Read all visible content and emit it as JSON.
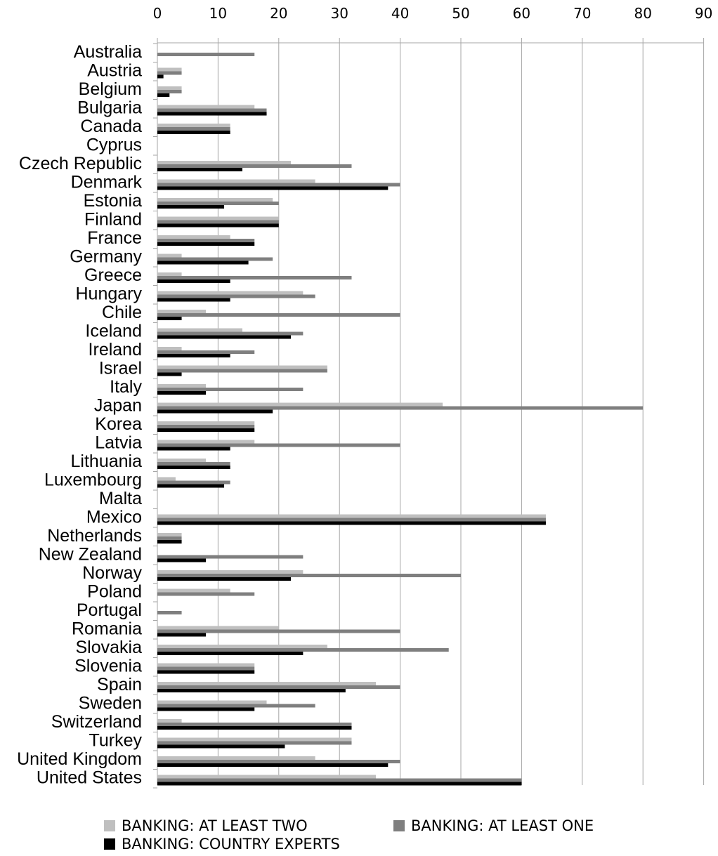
{
  "chart_data": {
    "type": "bar",
    "orientation": "horizontal",
    "categories": [
      "Australia",
      "Austria",
      "Belgium",
      "Bulgaria",
      "Canada",
      "Cyprus",
      "Czech Republic",
      "Denmark",
      "Estonia",
      "Finland",
      "France",
      "Germany",
      "Greece",
      "Hungary",
      "Chile",
      "Iceland",
      "Ireland",
      "Israel",
      "Italy",
      "Japan",
      "Korea",
      "Latvia",
      "Lithuania",
      "Luxembourg",
      "Malta",
      "Mexico",
      "Netherlands",
      "New Zealand",
      "Norway",
      "Poland",
      "Portugal",
      "Romania",
      "Slovakia",
      "Slovenia",
      "Spain",
      "Sweden",
      "Switzerland",
      "Turkey",
      "United Kingdom",
      "United States"
    ],
    "series": [
      {
        "name": "BANKING: AT LEAST TWO",
        "color": "#bfbfbf",
        "values": [
          0,
          4,
          4,
          16,
          12,
          0,
          22,
          26,
          19,
          20,
          12,
          4,
          4,
          24,
          8,
          14,
          4,
          28,
          8,
          47,
          16,
          16,
          8,
          3,
          0,
          64,
          4,
          0,
          24,
          12,
          0,
          20,
          28,
          16,
          36,
          18,
          4,
          32,
          26,
          36
        ]
      },
      {
        "name": "BANKING: AT LEAST ONE",
        "color": "#7f7f7f",
        "values": [
          16,
          4,
          4,
          18,
          12,
          0,
          32,
          40,
          20,
          20,
          16,
          19,
          32,
          26,
          40,
          24,
          16,
          28,
          24,
          80,
          16,
          40,
          12,
          12,
          0,
          64,
          4,
          24,
          50,
          16,
          4,
          40,
          48,
          16,
          40,
          26,
          32,
          32,
          40,
          60
        ]
      },
      {
        "name": "BANKING: COUNTRY EXPERTS",
        "color": "#000000",
        "values": [
          0,
          1,
          2,
          18,
          12,
          0,
          14,
          38,
          11,
          20,
          16,
          15,
          12,
          12,
          4,
          22,
          12,
          4,
          8,
          19,
          16,
          12,
          12,
          11,
          0,
          64,
          4,
          8,
          22,
          0,
          0,
          8,
          24,
          16,
          31,
          16,
          32,
          21,
          38,
          60
        ]
      }
    ],
    "x_ticks": [
      "0",
      "10",
      "20",
      "30",
      "40",
      "50",
      "60",
      "70",
      "80",
      "90"
    ],
    "xlim": [
      0,
      90
    ],
    "grid": true,
    "legend_position": "bottom"
  }
}
